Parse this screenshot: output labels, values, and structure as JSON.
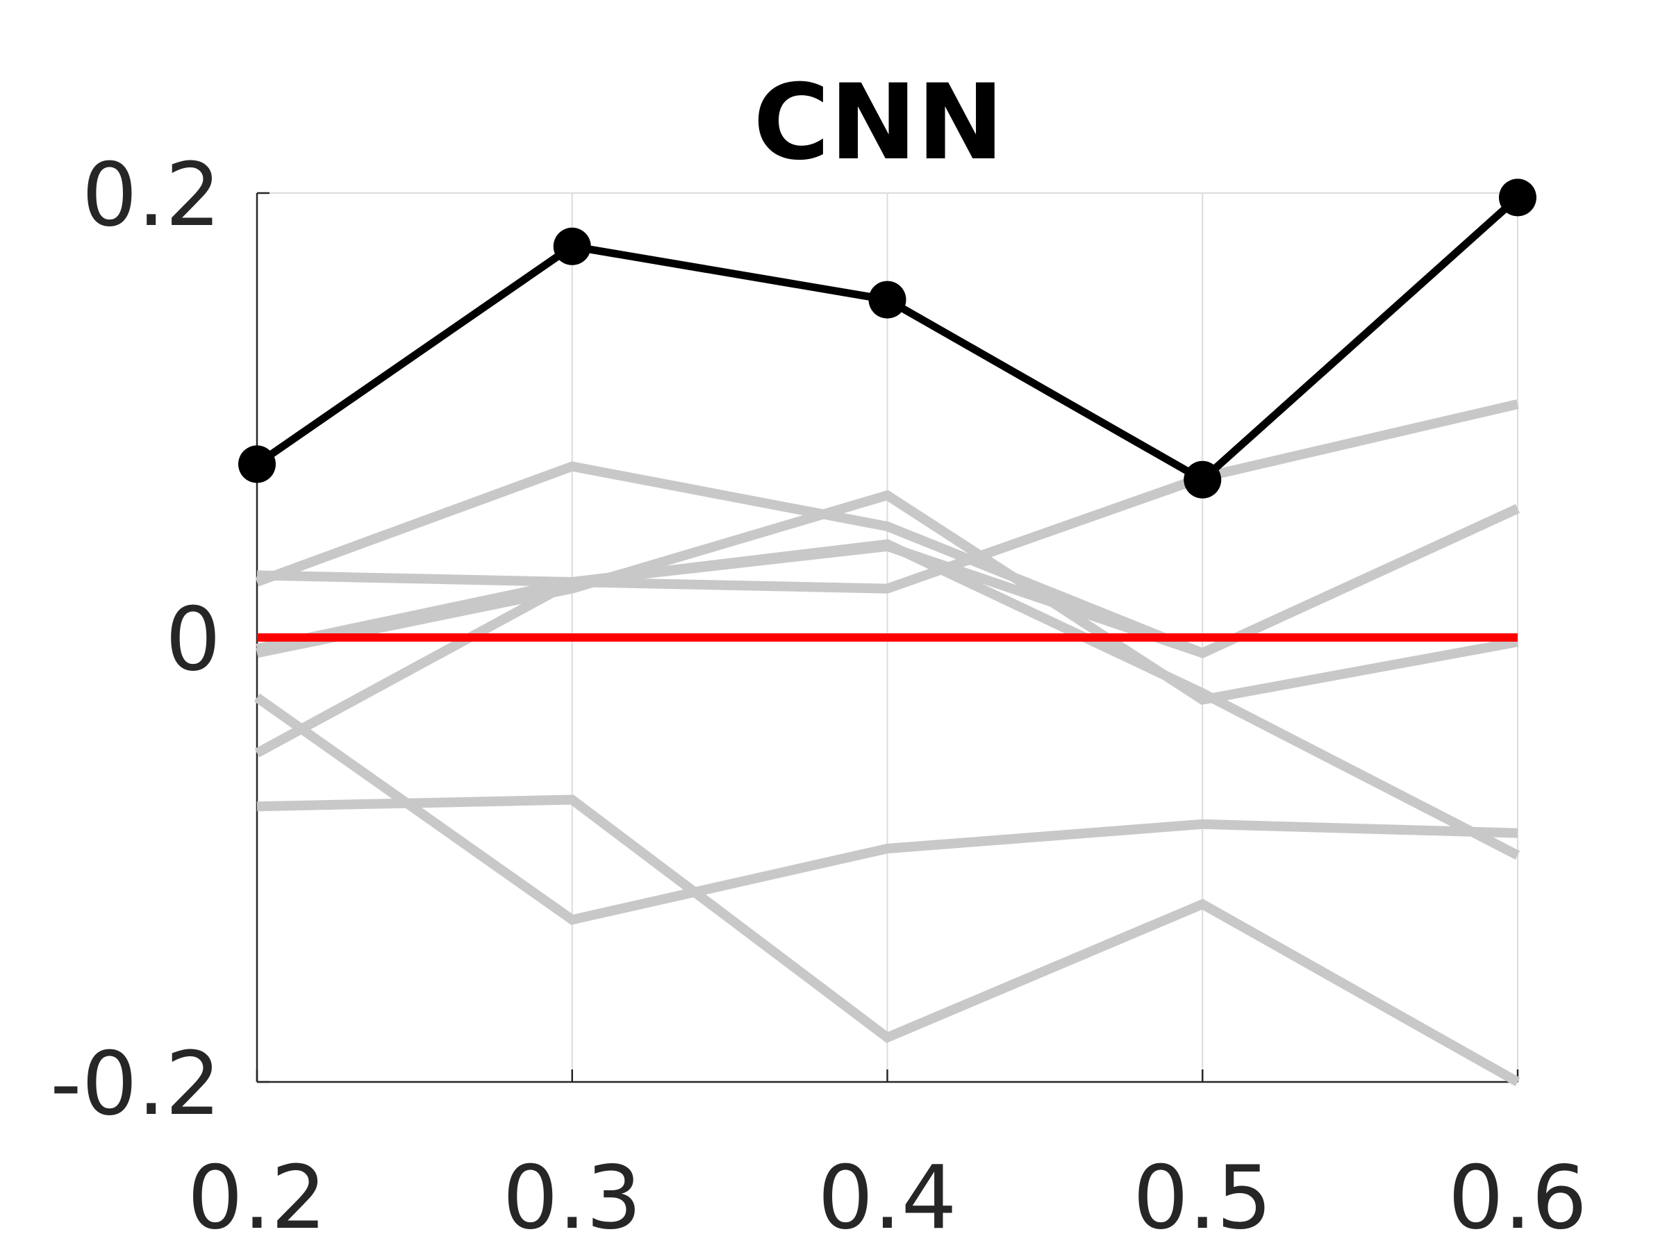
{
  "chart_data": {
    "type": "line",
    "title": "CNN",
    "xlabel": "",
    "ylabel": "",
    "x": [
      0.2,
      0.3,
      0.4,
      0.5,
      0.6
    ],
    "x_tick_labels": [
      "0.2",
      "0.3",
      "0.4",
      "0.5",
      "0.6"
    ],
    "y_ticks": [
      -0.2,
      0,
      0.2
    ],
    "y_tick_labels": [
      "-0.2",
      "0",
      "0.2"
    ],
    "xlim": [
      0.2,
      0.6
    ],
    "ylim": [
      -0.2,
      0.2
    ],
    "grid": "vertical",
    "reference_line": {
      "y": 0,
      "color": "#ff0000"
    },
    "highlight_series": {
      "values": [
        0.078,
        0.176,
        0.152,
        0.071,
        0.198
      ],
      "color": "#000000",
      "markers": true
    },
    "background_series_color": "#c8c8c8",
    "background_series": [
      {
        "values": [
          0.025,
          0.077,
          0.05,
          -0.007,
          0.058
        ]
      },
      {
        "values": [
          -0.007,
          0.022,
          0.064,
          -0.028,
          -0.002
        ]
      },
      {
        "values": [
          0.028,
          0.025,
          0.022,
          0.072,
          0.105
        ]
      },
      {
        "values": [
          -0.052,
          0.025,
          0.042,
          -0.025,
          -0.098
        ]
      },
      {
        "values": [
          -0.027,
          -0.127,
          -0.095,
          -0.084,
          -0.088
        ]
      },
      {
        "values": [
          -0.076,
          -0.073,
          -0.18,
          -0.12,
          -0.2
        ]
      },
      {
        "values": [
          -0.005,
          0.025,
          0.041,
          -0.007,
          0.058
        ]
      }
    ]
  }
}
